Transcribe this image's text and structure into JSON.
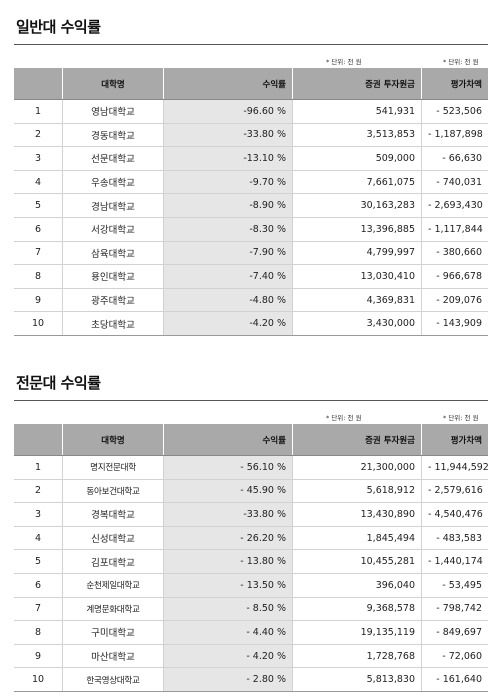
{
  "sections": [
    {
      "title": "일반대 수익률",
      "unit_note": "* 단위: 천 원",
      "columns": [
        "",
        "대학명",
        "수익률",
        "증권 투자원금",
        "평가차액"
      ],
      "rows": [
        {
          "rank": "1",
          "name": "영남대학교",
          "rate": "-96.60 %",
          "investment": "541,931",
          "diff": "- 523,506"
        },
        {
          "rank": "2",
          "name": "경동대학교",
          "rate": "-33.80 %",
          "investment": "3,513,853",
          "diff": "- 1,187,898"
        },
        {
          "rank": "3",
          "name": "선문대학교",
          "rate": "-13.10 %",
          "investment": "509,000",
          "diff": "- 66,630"
        },
        {
          "rank": "4",
          "name": "우송대학교",
          "rate": "-9.70 %",
          "investment": "7,661,075",
          "diff": "- 740,031"
        },
        {
          "rank": "5",
          "name": "경남대학교",
          "rate": "-8.90 %",
          "investment": "30,163,283",
          "diff": "- 2,693,430"
        },
        {
          "rank": "6",
          "name": "서강대학교",
          "rate": "-8.30 %",
          "investment": "13,396,885",
          "diff": "- 1,117,844"
        },
        {
          "rank": "7",
          "name": "삼육대학교",
          "rate": "-7.90 %",
          "investment": "4,799,997",
          "diff": "- 380,660"
        },
        {
          "rank": "8",
          "name": "용인대학교",
          "rate": "-7.40 %",
          "investment": "13,030,410",
          "diff": "- 966,678"
        },
        {
          "rank": "9",
          "name": "광주대학교",
          "rate": "-4.80 %",
          "investment": "4,369,831",
          "diff": "- 209,076"
        },
        {
          "rank": "10",
          "name": "초당대학교",
          "rate": "-4.20 %",
          "investment": "3,430,000",
          "diff": "- 143,909"
        }
      ]
    },
    {
      "title": "전문대 수익률",
      "unit_note": "* 단위: 천 원",
      "columns": [
        "",
        "대학명",
        "수익률",
        "증권 투자원금",
        "평가차액"
      ],
      "rows": [
        {
          "rank": "1",
          "name": "명지전문대학",
          "rate": "- 56.10 %",
          "investment": "21,300,000",
          "diff": "- 11,944,592"
        },
        {
          "rank": "2",
          "name": "동아보건대학교",
          "rate": "- 45.90 %",
          "investment": "5,618,912",
          "diff": "- 2,579,616"
        },
        {
          "rank": "3",
          "name": "경복대학교",
          "rate": "-33.80 %",
          "investment": "13,430,890",
          "diff": "- 4,540,476"
        },
        {
          "rank": "4",
          "name": "신성대학교",
          "rate": "- 26.20 %",
          "investment": "1,845,494",
          "diff": "- 483,583"
        },
        {
          "rank": "5",
          "name": "김포대학교",
          "rate": "- 13.80 %",
          "investment": "10,455,281",
          "diff": "- 1,440,174"
        },
        {
          "rank": "6",
          "name": "순천제일대학교",
          "rate": "- 13.50 %",
          "investment": "396,040",
          "diff": "- 53,495"
        },
        {
          "rank": "7",
          "name": "계명문화대학교",
          "rate": "- 8.50 %",
          "investment": "9,368,578",
          "diff": "- 798,742"
        },
        {
          "rank": "8",
          "name": "구미대학교",
          "rate": "- 4.40 %",
          "investment": "19,135,119",
          "diff": "- 849,697"
        },
        {
          "rank": "9",
          "name": "마산대학교",
          "rate": "- 4.20 %",
          "investment": "1,728,768",
          "diff": "- 72,060"
        },
        {
          "rank": "10",
          "name": "한국영상대학교",
          "rate": "- 2.80 %",
          "investment": "5,813,830",
          "diff": "- 161,640"
        }
      ]
    }
  ]
}
